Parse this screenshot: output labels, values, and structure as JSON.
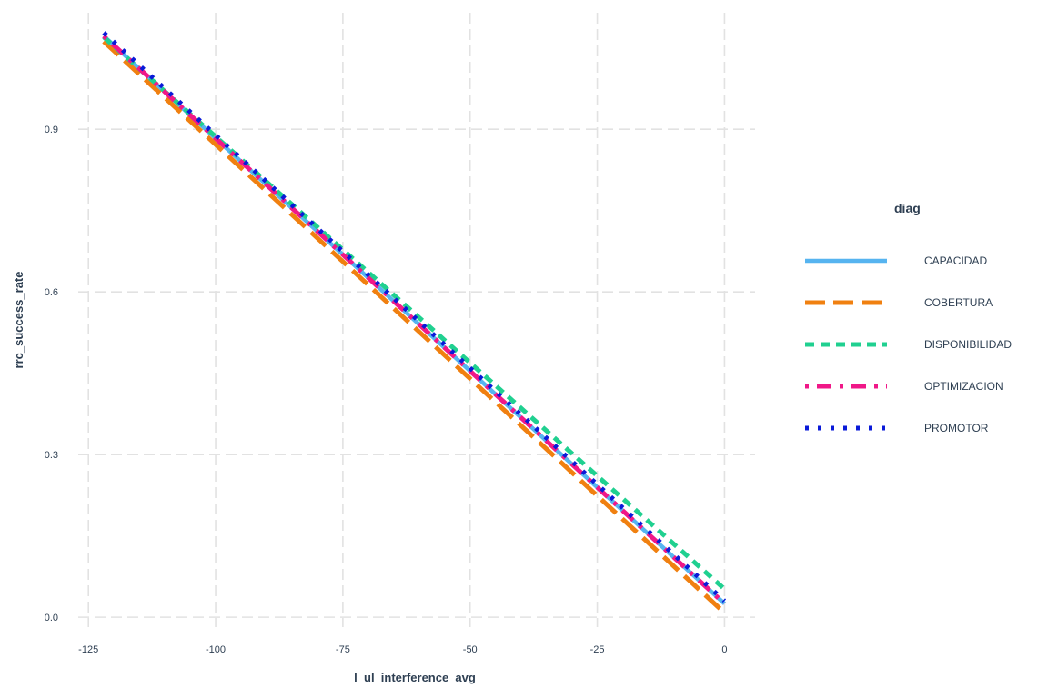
{
  "chart_data": {
    "type": "line",
    "title": "",
    "xlabel": "l_ul_interference_avg",
    "ylabel": "rrc_success_rate",
    "xlim": [
      -127,
      6
    ],
    "ylim": [
      -0.035,
      1.13
    ],
    "x_ticks": [
      -125,
      -100,
      -75,
      -50,
      -25,
      0
    ],
    "y_ticks": [
      0.0,
      0.3,
      0.6,
      0.9
    ],
    "x_tick_labels": [
      "-125",
      "-100",
      "-75",
      "-50",
      "-25",
      "0"
    ],
    "y_tick_labels": [
      "0.0",
      "0.3",
      "0.6",
      "0.9"
    ],
    "grid": true,
    "legend": {
      "title": "diag",
      "position": "right"
    },
    "series": [
      {
        "name": "CAPACIDAD",
        "color": "#56b4f0",
        "dash": "solid",
        "x": [
          -122,
          0
        ],
        "y": [
          1.072,
          0.025
        ]
      },
      {
        "name": "COBERTURA",
        "color": "#f08010",
        "dash": "longdash",
        "x": [
          -122,
          0
        ],
        "y": [
          1.062,
          0.008
        ]
      },
      {
        "name": "DISPONIBILIDAD",
        "color": "#20d090",
        "dash": "dashed",
        "x": [
          -122,
          0
        ],
        "y": [
          1.07,
          0.052
        ]
      },
      {
        "name": "OPTIMIZACION",
        "color": "#f01888",
        "dash": "dotdash",
        "x": [
          -122,
          0
        ],
        "y": [
          1.072,
          0.025
        ]
      },
      {
        "name": "PROMOTOR",
        "color": "#0a1ad8",
        "dash": "dotted",
        "x": [
          -122,
          0
        ],
        "y": [
          1.078,
          0.03
        ]
      }
    ]
  }
}
